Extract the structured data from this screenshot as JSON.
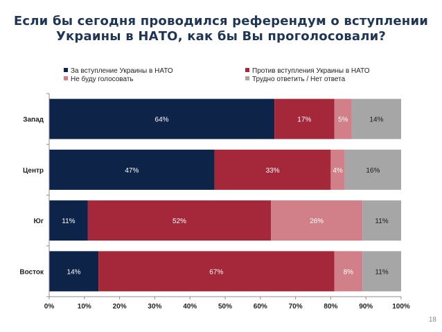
{
  "title": {
    "line1": "Если бы сегодня проводился референдум о вступлении",
    "line2": "Украины в НАТО, как бы Вы проголосовали?"
  },
  "legend": [
    {
      "label": "За вступление Украины в НАТО",
      "color": "#0d2347"
    },
    {
      "label": "Против вступления Украины в НАТО",
      "color": "#a5273a"
    },
    {
      "label": "Не буду голосовать",
      "color": "#d1808a"
    },
    {
      "label": "Трудно ответить / Нет ответа",
      "color": "#a6a6a6"
    }
  ],
  "page_number": "18",
  "chart_data": {
    "type": "bar",
    "orientation": "horizontal",
    "stacked": true,
    "title": "Если бы сегодня проводился референдум о вступлении Украины в НАТО, как бы Вы проголосовали?",
    "categories": [
      "Запад",
      "Центр",
      "Юг",
      "Восток"
    ],
    "series": [
      {
        "name": "За вступление Украины в НАТО",
        "color": "#0d2347",
        "values": [
          64,
          47,
          11,
          14
        ]
      },
      {
        "name": "Против вступления Украины в НАТО",
        "color": "#a5273a",
        "values": [
          17,
          33,
          52,
          67
        ]
      },
      {
        "name": "Не буду голосовать",
        "color": "#d1808a",
        "values": [
          5,
          4,
          26,
          8
        ]
      },
      {
        "name": "Трудно ответить / Нет ответа",
        "color": "#a6a6a6",
        "values": [
          14,
          16,
          11,
          11
        ]
      }
    ],
    "data_labels": [
      [
        "64%",
        "17%",
        "5%",
        "14%"
      ],
      [
        "47%",
        "33%",
        "4%",
        "16%"
      ],
      [
        "11%",
        "52%",
        "26%",
        "11%"
      ],
      [
        "14%",
        "67%",
        "8%",
        "11%"
      ]
    ],
    "xticks": [
      "0%",
      "10%",
      "20%",
      "30%",
      "40%",
      "50%",
      "60%",
      "70%",
      "80%",
      "90%",
      "100%"
    ],
    "xlim": [
      0,
      100
    ],
    "legend_position": "top"
  }
}
